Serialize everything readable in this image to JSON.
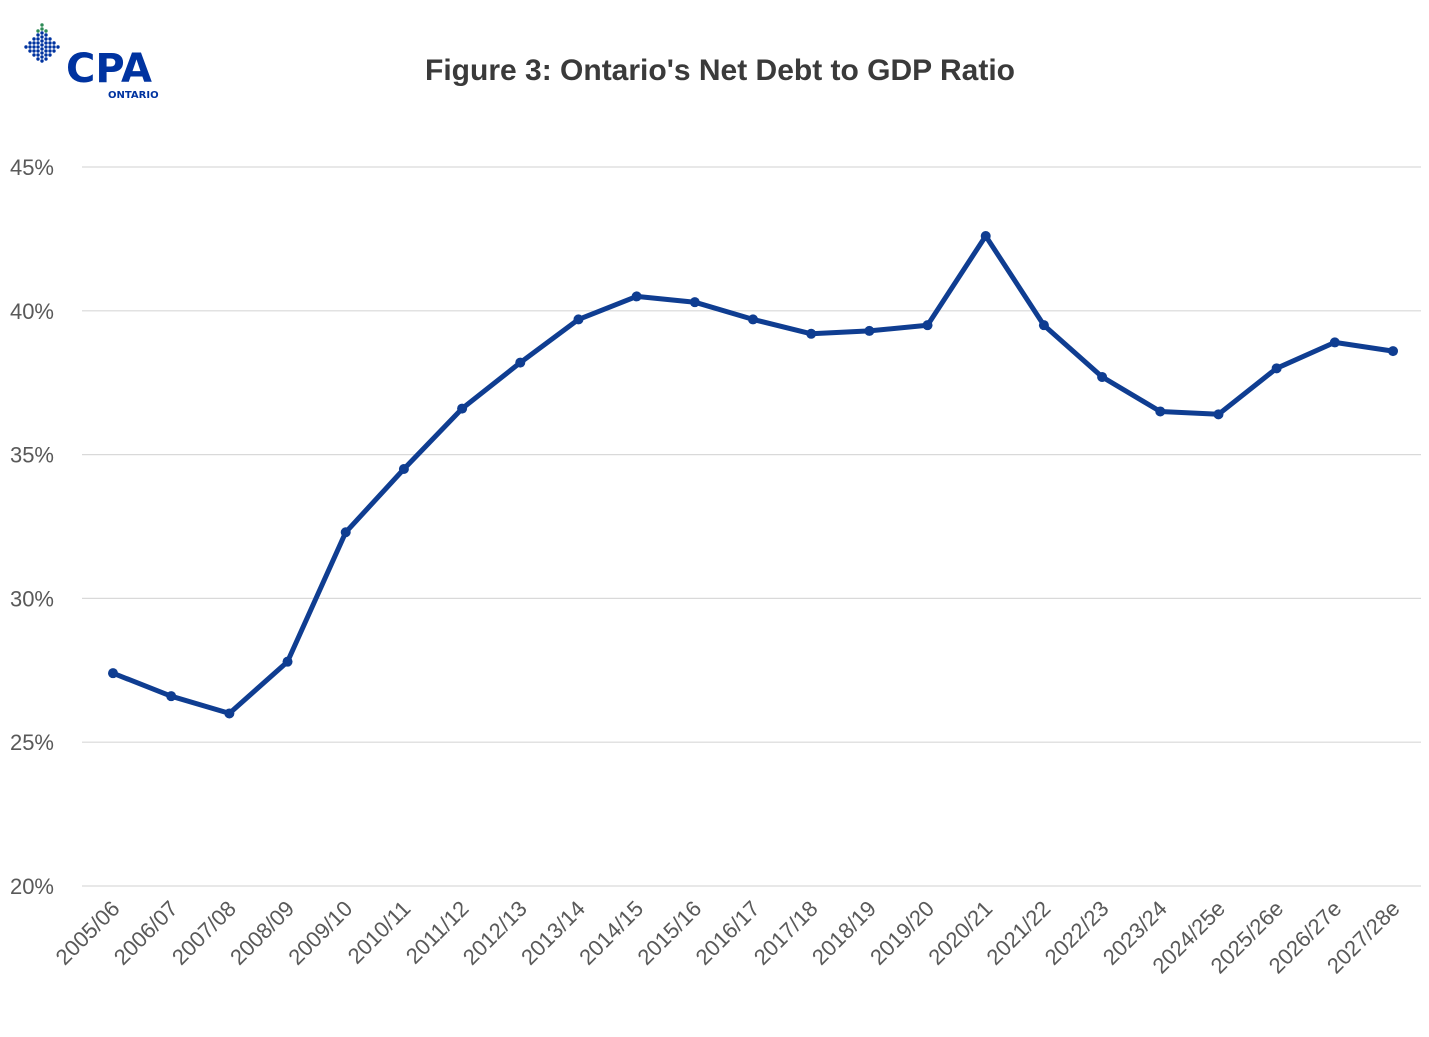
{
  "brand": {
    "name": "CPA",
    "subname": "ONTARIO",
    "color": "#0033a0",
    "accent_color": "#2e8b57"
  },
  "chart_data": {
    "type": "line",
    "title": "Figure 3: Ontario's Net Debt to GDP Ratio",
    "xlabel": "",
    "ylabel": "",
    "categories": [
      "2005/06",
      "2006/07",
      "2007/08",
      "2008/09",
      "2009/10",
      "2010/11",
      "2011/12",
      "2012/13",
      "2013/14",
      "2014/15",
      "2015/16",
      "2016/17",
      "2017/18",
      "2018/19",
      "2019/20",
      "2020/21",
      "2021/22",
      "2022/23",
      "2023/24",
      "2024/25e",
      "2025/26e",
      "2026/27e",
      "2027/28e"
    ],
    "series": [
      {
        "name": "Net Debt to GDP",
        "color": "#0f3d91",
        "values": [
          27.4,
          26.6,
          26.0,
          27.8,
          32.3,
          34.5,
          36.6,
          38.2,
          39.7,
          40.5,
          40.3,
          39.7,
          39.2,
          39.3,
          39.5,
          42.6,
          39.5,
          37.7,
          36.5,
          36.4,
          38.0,
          38.9,
          38.6
        ]
      }
    ],
    "ylim": [
      20,
      45
    ],
    "yticks": [
      20,
      25,
      30,
      35,
      40,
      45
    ],
    "ytick_labels": [
      "20%",
      "25%",
      "30%",
      "35%",
      "40%",
      "45%"
    ],
    "grid": true,
    "legend": "none"
  }
}
